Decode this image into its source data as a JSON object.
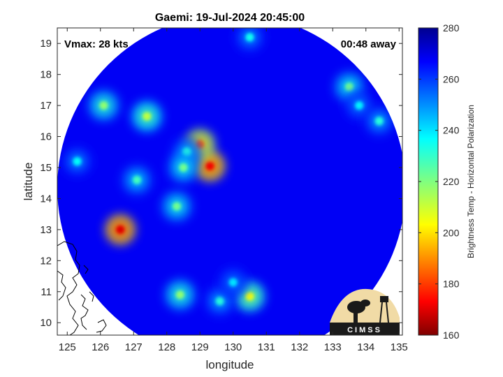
{
  "chart_data": {
    "type": "heatmap",
    "title": "Gaemi: 19-Jul-2024 20:45:00",
    "annotations": {
      "vmax": "Vmax: 28 kts",
      "time_away": "00:48 away"
    },
    "xlabel": "longitude",
    "ylabel": "latitude",
    "xlim": [
      124.7,
      135.1
    ],
    "ylim": [
      9.6,
      19.5
    ],
    "xticks": [
      125,
      126,
      127,
      128,
      129,
      130,
      131,
      132,
      133,
      134,
      135
    ],
    "yticks": [
      10,
      11,
      12,
      13,
      14,
      15,
      16,
      17,
      18,
      19
    ],
    "colorbar": {
      "label": "Brightness Temp - Horizontal Polarization",
      "range": [
        160,
        280
      ],
      "ticks": [
        160,
        180,
        200,
        220,
        240,
        260,
        280
      ],
      "colormap": "jet"
    },
    "swath": {
      "center": [
        129.95,
        14.35
      ],
      "radius_deg": 5.25,
      "background_value": 268
    },
    "cold_features": [
      {
        "lon": 129.3,
        "lat": 15.05,
        "value": 172
      },
      {
        "lon": 129.0,
        "lat": 15.75,
        "value": 185
      },
      {
        "lon": 126.6,
        "lat": 13.0,
        "value": 170
      },
      {
        "lon": 127.4,
        "lat": 16.65,
        "value": 212
      },
      {
        "lon": 126.1,
        "lat": 17.0,
        "value": 218
      },
      {
        "lon": 128.6,
        "lat": 15.5,
        "value": 232
      },
      {
        "lon": 128.5,
        "lat": 15.0,
        "value": 222
      },
      {
        "lon": 128.3,
        "lat": 13.75,
        "value": 222
      },
      {
        "lon": 127.1,
        "lat": 14.6,
        "value": 228
      },
      {
        "lon": 130.5,
        "lat": 10.85,
        "value": 205
      },
      {
        "lon": 129.6,
        "lat": 10.7,
        "value": 232
      },
      {
        "lon": 128.4,
        "lat": 10.9,
        "value": 218
      },
      {
        "lon": 130.0,
        "lat": 11.3,
        "value": 240
      },
      {
        "lon": 130.5,
        "lat": 19.2,
        "value": 235
      },
      {
        "lon": 133.5,
        "lat": 17.6,
        "value": 222
      },
      {
        "lon": 133.8,
        "lat": 17.0,
        "value": 238
      },
      {
        "lon": 134.4,
        "lat": 16.5,
        "value": 232
      },
      {
        "lon": 125.3,
        "lat": 15.2,
        "value": 236
      }
    ],
    "logo_text": "CIMSS"
  }
}
